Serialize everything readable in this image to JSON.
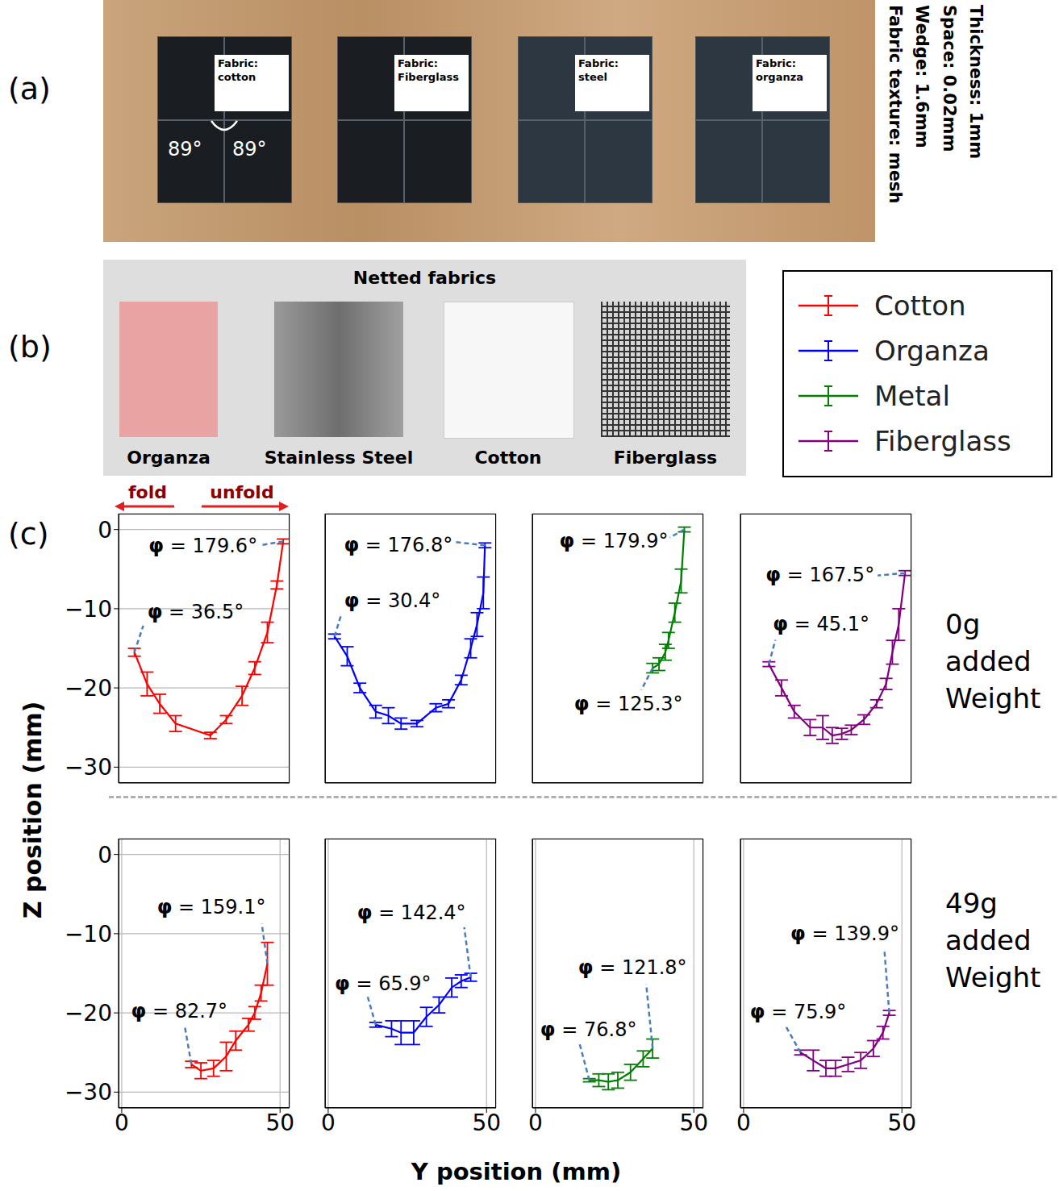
{
  "panel_letters": [
    "(a)",
    "(b)",
    "(c)"
  ],
  "photo_a": {
    "samples": [
      "Fabric: cotton",
      "Fabric: Fiberglass",
      "Fabric: steel",
      "Fabric: organza"
    ],
    "angles": [
      "89°",
      "89°"
    ],
    "specs": [
      "Thickness: 1mm",
      "Space: 0.02mm",
      "Wedge: 1.6mm",
      "Fabric texture: mesh"
    ]
  },
  "photo_b": {
    "title": "Netted fabrics",
    "samples": [
      "Organza",
      "Stainless Steel",
      "Cotton",
      "Fiberglass"
    ]
  },
  "directions": [
    "fold",
    "unfold"
  ],
  "row_labels": [
    "0g added Weight",
    "49g added Weight"
  ],
  "x_label": "Y position (mm)",
  "y_label": "Z position (mm)",
  "chart_data": [
    {
      "type": "line",
      "x": [
        4,
        8,
        12,
        17,
        28,
        33,
        38,
        42,
        46,
        49,
        51
      ],
      "series": [
        {
          "name": "Cotton",
          "color": "#ff0000",
          "values": [
            -15.5,
            -19.5,
            -22,
            -24.5,
            -26,
            -24,
            -21,
            -17.5,
            -13,
            -7,
            -1.5
          ],
          "errors": [
            0.5,
            1.5,
            1.2,
            1,
            0.4,
            0.5,
            1.2,
            0.8,
            1.3,
            0.5,
            0.3
          ]
        }
      ],
      "xlim": [
        -1,
        53
      ],
      "ylim": [
        -32,
        2
      ],
      "xticks": [
        0,
        50
      ],
      "yticks": [
        0,
        {
          "value": -10,
          "label": "−10"
        },
        {
          "value": -20,
          "label": "−20"
        },
        {
          "value": -30,
          "label": "−30"
        }
      ],
      "grid": true,
      "tick_labels": "y",
      "start_annotation": "φ = 36.5°",
      "end_annotation": "φ = 179.6°"
    },
    {
      "type": "line",
      "x": [
        2,
        6,
        10,
        15,
        19,
        23,
        28,
        34,
        38,
        42,
        45,
        47,
        49,
        49.5
      ],
      "series": [
        {
          "name": "Organza",
          "color": "#0000ff",
          "values": [
            -13.5,
            -16,
            -20,
            -23,
            -23.5,
            -24.5,
            -24.5,
            -22.5,
            -22,
            -19,
            -15,
            -12,
            -8,
            -2
          ],
          "errors": [
            0.3,
            1.2,
            0.6,
            0.8,
            1,
            0.7,
            0.4,
            0.5,
            0.5,
            0.6,
            1.2,
            1.5,
            2,
            0.3
          ]
        }
      ],
      "xlim": [
        -1,
        53
      ],
      "ylim": [
        -32,
        2
      ],
      "xticks": [
        0,
        50
      ],
      "yticks": [
        0,
        {
          "value": -10,
          "label": "−10"
        },
        {
          "value": -20,
          "label": "−20"
        },
        {
          "value": -30,
          "label": "−30"
        }
      ],
      "grid": true,
      "tick_labels": false,
      "start_annotation": "φ = 30.4°",
      "end_annotation": "φ = 176.8°"
    },
    {
      "type": "line",
      "x": [
        37,
        39,
        41,
        42,
        44,
        46,
        47
      ],
      "series": [
        {
          "name": "Metal",
          "color": "#008000",
          "values": [
            -17.5,
            -17,
            -15.5,
            -14,
            -10.5,
            -6.5,
            0
          ],
          "errors": [
            0.6,
            0.8,
            1,
            1,
            1.2,
            1.5,
            0.3
          ]
        }
      ],
      "xlim": [
        -1,
        53
      ],
      "ylim": [
        -32,
        2
      ],
      "xticks": [
        0,
        50
      ],
      "yticks": [
        0,
        {
          "value": -10,
          "label": "−10"
        },
        {
          "value": -20,
          "label": "−20"
        },
        {
          "value": -30,
          "label": "−30"
        }
      ],
      "grid": true,
      "tick_labels": false,
      "start_annotation": "φ = 125.3°",
      "end_annotation": "φ = 179.9°"
    },
    {
      "type": "line",
      "x": [
        8,
        12,
        16,
        21,
        25,
        28,
        31,
        34,
        38,
        42,
        45,
        47,
        49,
        51
      ],
      "series": [
        {
          "name": "Fiberglass",
          "color": "#800080",
          "values": [
            -17,
            -20,
            -23,
            -25,
            -25,
            -26,
            -25.8,
            -25.3,
            -24,
            -22,
            -19.5,
            -15.5,
            -12,
            -5.5
          ],
          "errors": [
            0.3,
            1,
            0.8,
            1,
            1.5,
            1,
            0.7,
            0.6,
            0.6,
            0.5,
            0.7,
            1.5,
            2,
            0.3
          ]
        }
      ],
      "xlim": [
        -1,
        53
      ],
      "ylim": [
        -32,
        2
      ],
      "xticks": [
        0,
        50
      ],
      "yticks": [
        0,
        {
          "value": -10,
          "label": "−10"
        },
        {
          "value": -20,
          "label": "−20"
        },
        {
          "value": -30,
          "label": "−30"
        }
      ],
      "grid": true,
      "tick_labels": false,
      "start_annotation": "φ = 45.1°",
      "end_annotation": "φ = 167.5°"
    },
    {
      "type": "line",
      "x": [
        22,
        25,
        29,
        33,
        36,
        40,
        42,
        44,
        46
      ],
      "series": [
        {
          "name": "Cotton",
          "color": "#ff0000",
          "values": [
            -26.5,
            -27.3,
            -27,
            -25.5,
            -23.5,
            -21.5,
            -20,
            -17.5,
            -13.8
          ],
          "errors": [
            0.4,
            1,
            1,
            1.8,
            1.2,
            0.8,
            0.8,
            1,
            2.7
          ]
        }
      ],
      "xlim": [
        -1,
        53
      ],
      "ylim": [
        -32,
        2
      ],
      "xticks": [
        0,
        50
      ],
      "yticks": [
        0,
        {
          "value": -10,
          "label": "−10"
        },
        {
          "value": -20,
          "label": "−20"
        },
        {
          "value": -30,
          "label": "−30"
        }
      ],
      "grid": true,
      "tick_labels": true,
      "start_annotation": "φ = 82.7°",
      "end_annotation": "φ = 159.1°"
    },
    {
      "type": "line",
      "x": [
        15,
        20,
        23,
        27,
        31,
        35,
        39,
        42,
        45
      ],
      "series": [
        {
          "name": "Organza",
          "color": "#0000ff",
          "values": [
            -21.5,
            -22,
            -22.5,
            -22.5,
            -20.5,
            -19,
            -16.8,
            -16,
            -15.5
          ],
          "errors": [
            0.3,
            1,
            1.5,
            1.5,
            1.2,
            1,
            1.2,
            0.8,
            0.5
          ]
        }
      ],
      "xlim": [
        -1,
        53
      ],
      "ylim": [
        -32,
        2
      ],
      "xticks": [
        0,
        50
      ],
      "yticks": [
        0,
        {
          "value": -10,
          "label": "−10"
        },
        {
          "value": -20,
          "label": "−20"
        },
        {
          "value": -30,
          "label": "−30"
        }
      ],
      "grid": true,
      "tick_labels": "x",
      "start_annotation": "φ = 65.9°",
      "end_annotation": "φ = 142.4°"
    },
    {
      "type": "line",
      "x": [
        17,
        20,
        23,
        26,
        30,
        34,
        37
      ],
      "series": [
        {
          "name": "Metal",
          "color": "#008000",
          "values": [
            -28.5,
            -28.5,
            -28.7,
            -28.5,
            -27.5,
            -25.8,
            -24.5
          ],
          "errors": [
            0.2,
            0.8,
            1,
            1,
            1,
            1,
            1.2
          ]
        }
      ],
      "xlim": [
        -1,
        53
      ],
      "ylim": [
        -32,
        2
      ],
      "xticks": [
        0,
        50
      ],
      "yticks": [
        0,
        {
          "value": -10,
          "label": "−10"
        },
        {
          "value": -20,
          "label": "−20"
        },
        {
          "value": -30,
          "label": "−30"
        }
      ],
      "grid": true,
      "tick_labels": "x",
      "start_annotation": "φ = 76.8°",
      "end_annotation": "φ = 121.8°"
    },
    {
      "type": "line",
      "x": [
        18,
        22,
        26,
        29,
        33,
        37,
        41,
        44,
        46
      ],
      "series": [
        {
          "name": "Fiberglass",
          "color": "#800080",
          "values": [
            -25,
            -26,
            -27,
            -27,
            -26.5,
            -26,
            -24.5,
            -22.5,
            -20
          ],
          "errors": [
            0.3,
            1.3,
            1,
            1,
            0.9,
            1,
            1,
            0.8,
            0.3
          ]
        }
      ],
      "xlim": [
        -1,
        53
      ],
      "ylim": [
        -32,
        2
      ],
      "xticks": [
        0,
        50
      ],
      "yticks": [
        0,
        {
          "value": -10,
          "label": "−10"
        },
        {
          "value": -20,
          "label": "−20"
        },
        {
          "value": -30,
          "label": "−30"
        }
      ],
      "grid": true,
      "tick_labels": "x",
      "start_annotation": "φ = 75.9°",
      "end_annotation": "φ = 139.9°"
    }
  ]
}
